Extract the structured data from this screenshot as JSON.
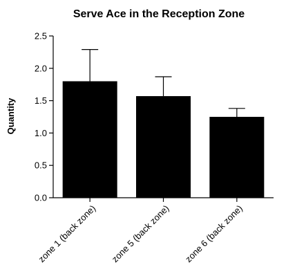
{
  "chart_data": {
    "type": "bar",
    "title": "Serve Ace in the Reception Zone",
    "xlabel": "",
    "ylabel": "Quantity",
    "categories": [
      "zone 1 (back zone)",
      "zone 5 (back zone)",
      "zone 6 (back zone)"
    ],
    "values": [
      1.8,
      1.57,
      1.25
    ],
    "error_upper": [
      2.29,
      1.87,
      1.38
    ],
    "ylim": [
      0,
      2.5
    ],
    "yticks": [
      "0.0",
      "0.5",
      "1.0",
      "1.5",
      "2.0",
      "2.5"
    ],
    "bar_color": "#000000",
    "grid": false
  }
}
